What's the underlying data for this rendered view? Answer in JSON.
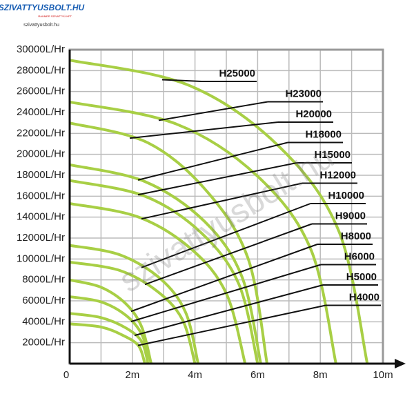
{
  "brand": {
    "logo": "SZIVATTYUSBOLT.HU",
    "tagline": "RAUMER SZIVATTYÚ KFT.",
    "site": "szivattyusbolt.hu"
  },
  "watermark": "szivattyusbolt.hu",
  "chart_data": {
    "type": "line",
    "xlim": [
      0,
      10
    ],
    "ylim": [
      0,
      30000
    ],
    "xticks": [
      0,
      {
        "value": 2,
        "label": "2m"
      },
      {
        "value": 4,
        "label": "4m"
      },
      {
        "value": 6,
        "label": "6m"
      },
      {
        "value": 8,
        "label": "8m"
      },
      {
        "value": 10,
        "label": "10m"
      }
    ],
    "x_minor_grid": [
      1,
      3,
      5,
      7,
      9
    ],
    "yticks": [
      {
        "value": 2000,
        "label": "2000L/Hr"
      },
      {
        "value": 4000,
        "label": "4000L/Hr"
      },
      {
        "value": 6000,
        "label": "6000L/Hr"
      },
      {
        "value": 8000,
        "label": "8000L/Hr"
      },
      {
        "value": 10000,
        "label": "10000L/Hr"
      },
      {
        "value": 12000,
        "label": "12000L/Hr"
      },
      {
        "value": 14000,
        "label": "14000L/Hr"
      },
      {
        "value": 16000,
        "label": "16000L/Hr"
      },
      {
        "value": 18000,
        "label": "18000L/Hr"
      },
      {
        "value": 20000,
        "label": "20000L/Hr"
      },
      {
        "value": 22000,
        "label": "22000L/Hr"
      },
      {
        "value": 24000,
        "label": "24000L/Hr"
      },
      {
        "value": 26000,
        "label": "26000L/Hr"
      },
      {
        "value": 28000,
        "label": "28000L/Hr"
      },
      {
        "value": 30000,
        "label": "30000L/Hr"
      }
    ],
    "grid": true,
    "color": "#a8cf45",
    "series": [
      {
        "name": "H25000",
        "x": [
          0,
          3.8,
          6.7,
          8.6,
          9.5
        ],
        "values": [
          29000,
          26600,
          20700,
          12600,
          0
        ]
      },
      {
        "name": "H23000",
        "x": [
          0,
          3.4,
          6.0,
          7.7,
          8.5
        ],
        "values": [
          25000,
          22900,
          17900,
          10900,
          0
        ]
      },
      {
        "name": "H20000",
        "x": [
          0,
          2.5,
          4.4,
          5.7,
          6.3
        ],
        "values": [
          23000,
          21100,
          16400,
          10000,
          0
        ]
      },
      {
        "name": "H18000",
        "x": [
          0,
          2.4,
          4.3,
          5.5,
          6.1
        ],
        "values": [
          19000,
          17400,
          13600,
          8300,
          0
        ]
      },
      {
        "name": "H15000",
        "x": [
          0,
          2.4,
          4.2,
          5.4,
          6.0
        ],
        "values": [
          17500,
          16000,
          12500,
          7600,
          0
        ]
      },
      {
        "name": "H12000",
        "x": [
          0,
          2.2,
          3.9,
          5.0,
          5.6
        ],
        "values": [
          15300,
          14000,
          10900,
          6700,
          0
        ]
      },
      {
        "name": "H10000",
        "x": [
          0,
          1.6,
          2.9,
          3.7,
          4.1
        ],
        "values": [
          11300,
          10400,
          8100,
          4900,
          0
        ]
      },
      {
        "name": "H9000",
        "x": [
          0,
          1.6,
          2.8,
          3.6,
          4.0
        ],
        "values": [
          9700,
          8900,
          6900,
          4200,
          0
        ]
      },
      {
        "name": "H8000",
        "x": [
          0,
          1.0,
          1.8,
          2.3,
          2.6
        ],
        "values": [
          8000,
          7300,
          5700,
          3500,
          0
        ]
      },
      {
        "name": "H6000",
        "x": [
          0,
          1.0,
          1.8,
          2.3,
          2.6
        ],
        "values": [
          6400,
          5900,
          4600,
          2800,
          0
        ]
      },
      {
        "name": "H5000",
        "x": [
          0,
          1.0,
          1.8,
          2.3,
          2.5
        ],
        "values": [
          4800,
          4400,
          3400,
          2100,
          0
        ]
      },
      {
        "name": "H4000",
        "x": [
          0,
          1.0,
          1.7,
          2.2,
          2.4
        ],
        "values": [
          3800,
          3500,
          2700,
          1700,
          0
        ]
      }
    ]
  }
}
